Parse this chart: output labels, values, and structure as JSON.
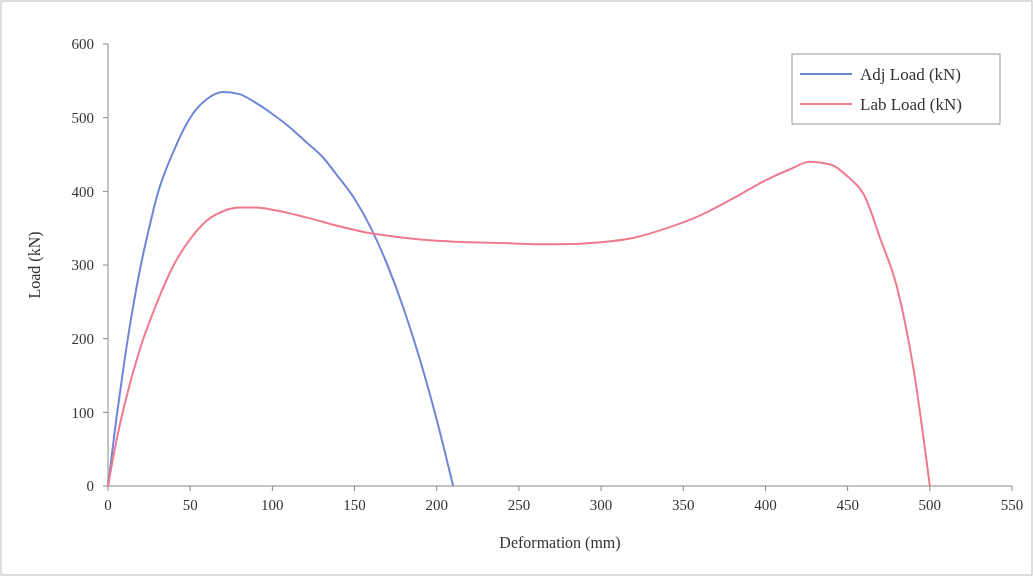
{
  "chart_data": {
    "type": "line",
    "xlabel": "Deformation (mm)",
    "ylabel": "Load (kN)",
    "xlim": [
      0,
      550
    ],
    "xticks": [
      0,
      50,
      100,
      150,
      200,
      250,
      300,
      350,
      400,
      450,
      500,
      550
    ],
    "ylim": [
      0,
      600
    ],
    "yticks": [
      0,
      100,
      200,
      300,
      400,
      500,
      600
    ],
    "grid": false,
    "legend": "top right",
    "marker": "none",
    "line_style": "solid",
    "series": [
      {
        "name": "Adj Load (kN)",
        "color": "#6f86d8",
        "x": [
          0,
          5,
          10,
          15,
          20,
          25,
          30,
          40,
          50,
          60,
          70,
          80,
          90,
          100,
          110,
          120,
          130,
          140,
          150,
          160,
          170,
          180,
          190,
          200,
          210
        ],
        "values": [
          0,
          90,
          170,
          240,
          300,
          350,
          395,
          455,
          500,
          525,
          535,
          532,
          520,
          505,
          488,
          468,
          448,
          420,
          390,
          350,
          300,
          240,
          170,
          90,
          0
        ]
      },
      {
        "name": "Lab Load (kN)",
        "color": "#f07a8e",
        "x": [
          0,
          5,
          10,
          20,
          30,
          40,
          50,
          60,
          70,
          80,
          90,
          100,
          120,
          140,
          160,
          180,
          200,
          220,
          250,
          270,
          300,
          320,
          340,
          360,
          380,
          400,
          415,
          427,
          440,
          450,
          460,
          470,
          480,
          490,
          500
        ],
        "values": [
          0,
          60,
          110,
          190,
          250,
          300,
          335,
          360,
          373,
          378,
          378,
          375,
          365,
          353,
          343,
          337,
          333,
          331,
          329,
          328,
          331,
          337,
          350,
          367,
          390,
          415,
          430,
          440,
          436,
          420,
          395,
          335,
          270,
          160,
          0
        ]
      }
    ]
  }
}
